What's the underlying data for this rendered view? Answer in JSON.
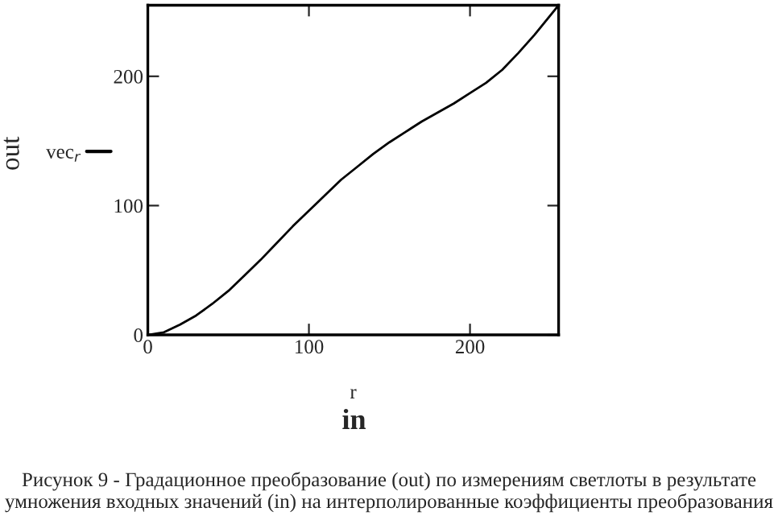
{
  "chart_data": {
    "type": "line",
    "xlabel": "r",
    "ylabel": "out",
    "annotations": [
      "in",
      "Рисунок 9 - Градационное преобразование (out) по измерениям светлоты в результате умножения входных значений (in) на интерполированные коэффициенты преобразования"
    ],
    "x": [
      0,
      10,
      20,
      30,
      40,
      50,
      60,
      70,
      80,
      90,
      100,
      110,
      120,
      130,
      140,
      150,
      160,
      170,
      180,
      190,
      200,
      210,
      220,
      230,
      240,
      255
    ],
    "series": [
      {
        "name": "vec$_{r}$",
        "color": "#000000",
        "values": [
          0,
          2,
          8,
          15,
          24,
          34,
          46,
          58,
          71,
          84,
          96,
          108,
          120,
          130,
          140,
          149,
          157,
          165,
          172,
          179,
          187,
          195,
          205,
          218,
          232,
          255
        ]
      }
    ],
    "xlim": [
      0,
      255
    ],
    "ylim": [
      0,
      255
    ],
    "xticks": [
      0,
      100,
      200
    ],
    "yticks": [
      0,
      100,
      200
    ],
    "grid": false,
    "legend": "left",
    "line_style": "solid",
    "marker": "none"
  }
}
